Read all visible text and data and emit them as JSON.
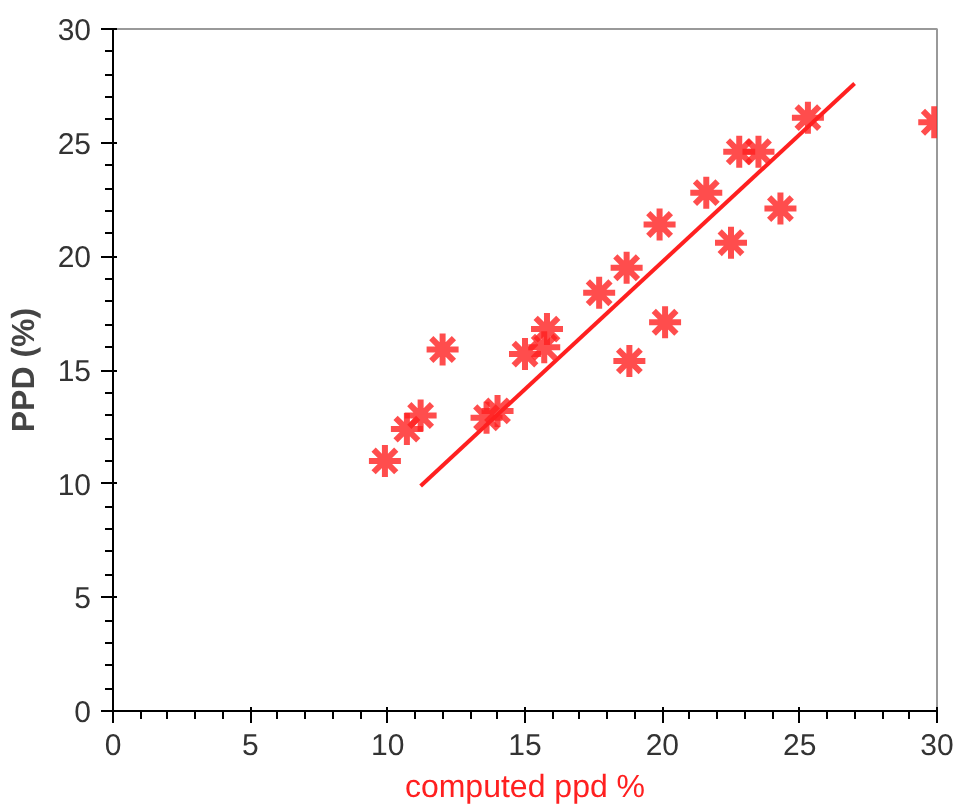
{
  "chart_data": {
    "type": "scatter",
    "xlabel": "computed ppd %",
    "ylabel": "PPD (%)",
    "x": [
      9.9,
      10.7,
      11.2,
      12.0,
      13.6,
      14.0,
      15.0,
      15.7,
      15.8,
      17.7,
      18.7,
      18.8,
      20.1,
      19.9,
      21.6,
      22.8,
      22.5,
      23.5,
      24.3,
      25.3,
      29.9
    ],
    "series": [
      {
        "color": "#ff2020",
        "marker": "cross",
        "values": [
          11.0,
          12.4,
          13.0,
          15.9,
          12.9,
          13.2,
          15.7,
          16.0,
          16.8,
          18.4,
          19.5,
          15.4,
          17.1,
          21.4,
          22.8,
          24.6,
          20.6,
          24.6,
          22.1,
          26.1,
          25.9
        ]
      },
      {
        "type": "line",
        "marker": "none",
        "color": "#ff2020",
        "x": [
          11.2,
          27.0
        ],
        "values": [
          9.9,
          27.6
        ]
      }
    ],
    "xlim": [
      0,
      30
    ],
    "ylim": [
      0,
      30
    ],
    "xticks": [
      0,
      5,
      10,
      15,
      20,
      25,
      30
    ],
    "yticks": [
      0,
      5,
      10,
      15,
      20,
      25,
      30
    ],
    "grid": false
  }
}
